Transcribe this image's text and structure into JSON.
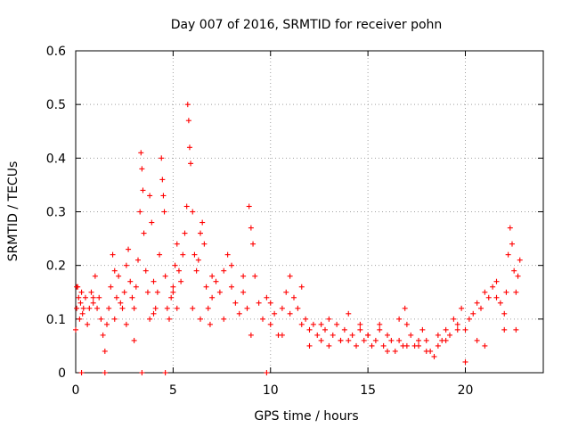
{
  "chart_data": {
    "type": "scatter",
    "title": "Day 007 of 2016, SRMTID for receiver pohn",
    "xlabel": "GPS time / hours",
    "ylabel": "SRMTID / TECUs",
    "xlim": [
      0,
      24
    ],
    "ylim": [
      0,
      0.6
    ],
    "xticks": [
      0,
      5,
      10,
      15,
      20
    ],
    "yticks": [
      0,
      0.1,
      0.2,
      0.3,
      0.4,
      0.5,
      0.6
    ],
    "xtick_labels": [
      "0",
      "5",
      "10",
      "15",
      "20"
    ],
    "ytick_labels": [
      "0",
      "0.1",
      "0.2",
      "0.3",
      "0.4",
      "0.5",
      "0.6"
    ],
    "grid": true,
    "marker": "+",
    "series": [
      {
        "name": "SRMTID",
        "color": "#ff0000",
        "x": [
          0.0,
          0.05,
          0.1,
          0.15,
          0.2,
          0.25,
          0.3,
          0.35,
          0.4,
          0.5,
          0.6,
          0.7,
          0.8,
          0.9,
          1.0,
          1.1,
          1.2,
          1.3,
          1.4,
          1.5,
          1.6,
          1.7,
          1.8,
          1.9,
          2.0,
          2.1,
          2.2,
          2.3,
          2.4,
          2.5,
          2.6,
          2.7,
          2.8,
          2.9,
          3.0,
          3.1,
          3.2,
          3.3,
          3.35,
          3.4,
          3.45,
          3.5,
          3.6,
          3.7,
          3.8,
          3.9,
          4.0,
          4.1,
          4.2,
          4.3,
          4.4,
          4.45,
          4.5,
          4.55,
          4.6,
          4.7,
          4.8,
          4.9,
          5.0,
          5.1,
          5.2,
          5.3,
          5.4,
          5.5,
          5.6,
          5.7,
          5.75,
          5.8,
          5.85,
          5.9,
          6.0,
          6.1,
          6.2,
          6.3,
          6.4,
          6.5,
          6.6,
          6.7,
          6.8,
          6.9,
          7.0,
          7.2,
          7.4,
          7.6,
          7.8,
          8.0,
          8.2,
          8.4,
          8.6,
          8.8,
          8.9,
          9.0,
          9.1,
          9.2,
          9.4,
          9.6,
          9.8,
          10.0,
          10.2,
          10.4,
          10.6,
          10.8,
          11.0,
          11.2,
          11.4,
          11.6,
          11.8,
          12.0,
          12.2,
          12.4,
          12.6,
          12.8,
          13.0,
          13.2,
          13.4,
          13.6,
          13.8,
          14.0,
          14.2,
          14.4,
          14.6,
          14.8,
          15.0,
          15.2,
          15.4,
          15.6,
          15.8,
          16.0,
          16.2,
          16.4,
          16.6,
          16.8,
          16.9,
          17.0,
          17.2,
          17.4,
          17.6,
          17.8,
          18.0,
          18.2,
          18.4,
          18.6,
          18.8,
          19.0,
          19.2,
          19.4,
          19.6,
          19.8,
          20.0,
          20.2,
          20.4,
          20.6,
          20.8,
          21.0,
          21.2,
          21.4,
          21.6,
          21.8,
          22.0,
          22.1,
          22.2,
          22.3,
          22.4,
          22.5,
          22.6,
          22.7,
          22.8,
          0.05,
          0.9,
          3.4,
          4.6,
          9.8,
          0.3,
          1.5,
          2.0,
          3.0,
          4.0,
          5.0,
          6.0,
          7.0,
          8.0,
          9.0,
          10.0,
          11.0,
          12.0,
          13.0,
          14.0,
          15.0,
          16.0,
          17.0,
          18.0,
          19.0,
          20.0,
          21.0,
          22.0,
          2.6,
          3.8,
          5.2,
          6.4,
          7.6,
          8.6,
          10.6,
          11.6,
          12.6,
          13.6,
          14.6,
          15.6,
          16.6,
          17.6,
          18.6,
          19.6,
          20.6,
          21.6,
          22.6
        ],
        "y": [
          0.08,
          0.12,
          0.16,
          0.14,
          0.1,
          0.13,
          0.15,
          0.11,
          0.12,
          0.14,
          0.09,
          0.12,
          0.15,
          0.13,
          0.18,
          0.12,
          0.14,
          0.1,
          0.07,
          0.04,
          0.09,
          0.12,
          0.16,
          0.22,
          0.19,
          0.14,
          0.18,
          0.13,
          0.12,
          0.15,
          0.2,
          0.23,
          0.17,
          0.14,
          0.12,
          0.16,
          0.21,
          0.3,
          0.41,
          0.38,
          0.34,
          0.26,
          0.19,
          0.15,
          0.33,
          0.28,
          0.17,
          0.12,
          0.15,
          0.22,
          0.4,
          0.36,
          0.33,
          0.3,
          0.18,
          0.12,
          0.1,
          0.14,
          0.16,
          0.2,
          0.24,
          0.19,
          0.17,
          0.22,
          0.26,
          0.31,
          0.5,
          0.47,
          0.42,
          0.39,
          0.3,
          0.22,
          0.19,
          0.21,
          0.26,
          0.28,
          0.24,
          0.16,
          0.12,
          0.09,
          0.14,
          0.17,
          0.15,
          0.19,
          0.22,
          0.16,
          0.13,
          0.11,
          0.15,
          0.12,
          0.31,
          0.27,
          0.24,
          0.18,
          0.13,
          0.1,
          0.14,
          0.09,
          0.11,
          0.07,
          0.12,
          0.15,
          0.18,
          0.14,
          0.12,
          0.16,
          0.1,
          0.08,
          0.09,
          0.07,
          0.06,
          0.08,
          0.05,
          0.07,
          0.09,
          0.06,
          0.08,
          0.06,
          0.07,
          0.05,
          0.09,
          0.06,
          0.07,
          0.05,
          0.06,
          0.08,
          0.05,
          0.07,
          0.06,
          0.04,
          0.06,
          0.05,
          0.12,
          0.09,
          0.07,
          0.05,
          0.06,
          0.08,
          0.06,
          0.04,
          0.03,
          0.05,
          0.06,
          0.08,
          0.07,
          0.1,
          0.09,
          0.12,
          0.08,
          0.1,
          0.11,
          0.13,
          0.12,
          0.15,
          0.14,
          0.16,
          0.17,
          0.13,
          0.11,
          0.15,
          0.22,
          0.27,
          0.24,
          0.19,
          0.15,
          0.18,
          0.21,
          0.16,
          0.14,
          0.0,
          0.0,
          0.0,
          0.0,
          0.0,
          0.1,
          0.06,
          0.11,
          0.15,
          0.12,
          0.18,
          0.2,
          0.07,
          0.13,
          0.11,
          0.05,
          0.1,
          0.11,
          0.07,
          0.04,
          0.05,
          0.04,
          0.06,
          0.02,
          0.05,
          0.08,
          0.09,
          0.1,
          0.12,
          0.1,
          0.1,
          0.18,
          0.07,
          0.09,
          0.09,
          0.06,
          0.08,
          0.09,
          0.1,
          0.05,
          0.07,
          0.08,
          0.06,
          0.14,
          0.08
        ]
      }
    ]
  }
}
